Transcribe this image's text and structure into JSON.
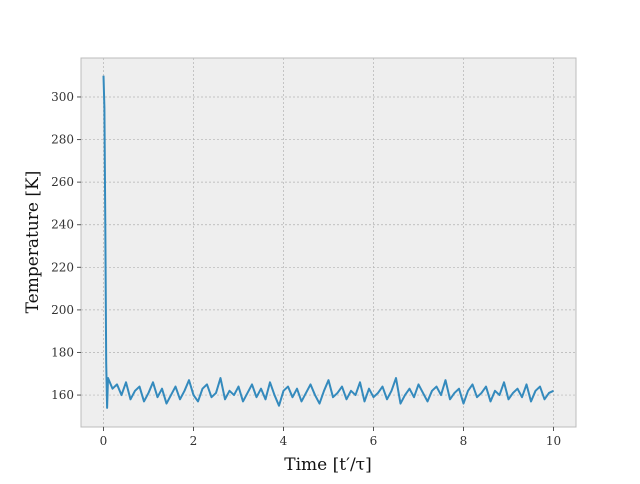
{
  "chart_data": {
    "type": "line",
    "x_label": "Time [t′/τ]",
    "y_label": "Temperature [K]",
    "xlim": [
      -0.5,
      10.5
    ],
    "xticks": [
      0,
      2,
      4,
      6,
      8,
      10
    ],
    "ylim": [
      145,
      318.3
    ],
    "yticks": [
      160,
      180,
      200,
      220,
      240,
      260,
      280,
      300
    ],
    "grid": true,
    "x": [
      0,
      0.02,
      0.04,
      0.06,
      0.08,
      0.1,
      0.2,
      0.3,
      0.4,
      0.5,
      0.6,
      0.7,
      0.8,
      0.9,
      1.0,
      1.1,
      1.2,
      1.3,
      1.4,
      1.5,
      1.6,
      1.7,
      1.8,
      1.9,
      2.0,
      2.1,
      2.2,
      2.3,
      2.4,
      2.5,
      2.6,
      2.7,
      2.8,
      2.9,
      3.0,
      3.1,
      3.2,
      3.3,
      3.4,
      3.5,
      3.6,
      3.7,
      3.8,
      3.9,
      4.0,
      4.1,
      4.2,
      4.3,
      4.4,
      4.5,
      4.6,
      4.7,
      4.8,
      4.9,
      5.0,
      5.1,
      5.2,
      5.3,
      5.4,
      5.5,
      5.6,
      5.7,
      5.8,
      5.9,
      6.0,
      6.1,
      6.2,
      6.3,
      6.4,
      6.5,
      6.6,
      6.7,
      6.8,
      6.9,
      7.0,
      7.1,
      7.2,
      7.3,
      7.4,
      7.5,
      7.6,
      7.7,
      7.8,
      7.9,
      8.0,
      8.1,
      8.2,
      8.3,
      8.4,
      8.5,
      8.6,
      8.7,
      8.8,
      8.9,
      9.0,
      9.1,
      9.2,
      9.3,
      9.4,
      9.5,
      9.6,
      9.7,
      9.8,
      9.9,
      10.0
    ],
    "series": [
      {
        "color": "#348abd",
        "values": [
          310,
          295,
          240,
          175,
          154,
          168,
          163,
          165,
          160,
          166,
          158,
          162,
          164,
          157,
          161,
          166,
          159,
          163,
          156,
          160,
          164,
          158,
          162,
          167,
          160,
          157,
          163,
          165,
          159,
          161,
          168,
          158,
          162,
          160,
          164,
          157,
          161,
          165,
          159,
          163,
          158,
          166,
          160,
          155,
          162,
          164,
          159,
          163,
          157,
          161,
          165,
          160,
          156,
          162,
          167,
          159,
          161,
          164,
          158,
          162,
          160,
          166,
          157,
          163,
          159,
          161,
          164,
          158,
          162,
          168,
          156,
          160,
          163,
          159,
          165,
          161,
          157,
          162,
          164,
          160,
          167,
          158,
          161,
          163,
          156,
          162,
          165,
          159,
          161,
          164,
          157,
          162,
          160,
          166,
          158,
          161,
          163,
          159,
          165,
          157,
          162,
          164,
          158,
          161,
          162
        ]
      }
    ]
  }
}
